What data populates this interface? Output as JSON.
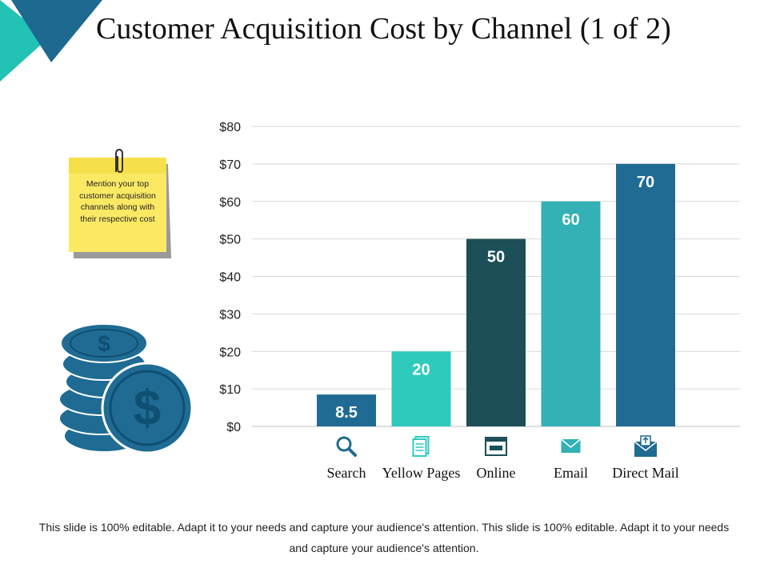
{
  "title": "Customer Acquisition Cost by Channel (1 of 2)",
  "note": "Mention your top customer acquisition channels along with their respective cost",
  "footer": "This slide is 100% editable. Adapt it to your needs and capture your audience's attention. This slide is 100% editable. Adapt it to your needs and capture your audience's attention.",
  "colors": {
    "teal_light": "#2ecbbd",
    "teal_mid": "#33b1b6",
    "teal_dark": "#1c4f57",
    "blue": "#1f6b93",
    "corner_teal": "#22c3b4",
    "corner_blue": "#1d6990"
  },
  "chart_data": {
    "type": "bar",
    "title": "",
    "categories": [
      "Search",
      "Yellow Pages",
      "Online",
      "Email",
      "Direct Mail"
    ],
    "values": [
      8.5,
      20,
      50,
      60,
      70
    ],
    "value_labels": [
      "8.5",
      "20",
      "50",
      "60",
      "70"
    ],
    "bar_colors": [
      "#1f6b93",
      "#2ecbbd",
      "#1c4f57",
      "#33b1b6",
      "#1f6b93"
    ],
    "icons": [
      "search-icon",
      "yellow-pages-icon",
      "online-browser-icon",
      "email-icon",
      "direct-mail-icon"
    ],
    "ylim": [
      0,
      80
    ],
    "yticks": [
      "$0",
      "$10",
      "$20",
      "$30",
      "$40",
      "$50",
      "$60",
      "$70",
      "$80"
    ],
    "grid": true,
    "xlabel": "",
    "ylabel": ""
  }
}
